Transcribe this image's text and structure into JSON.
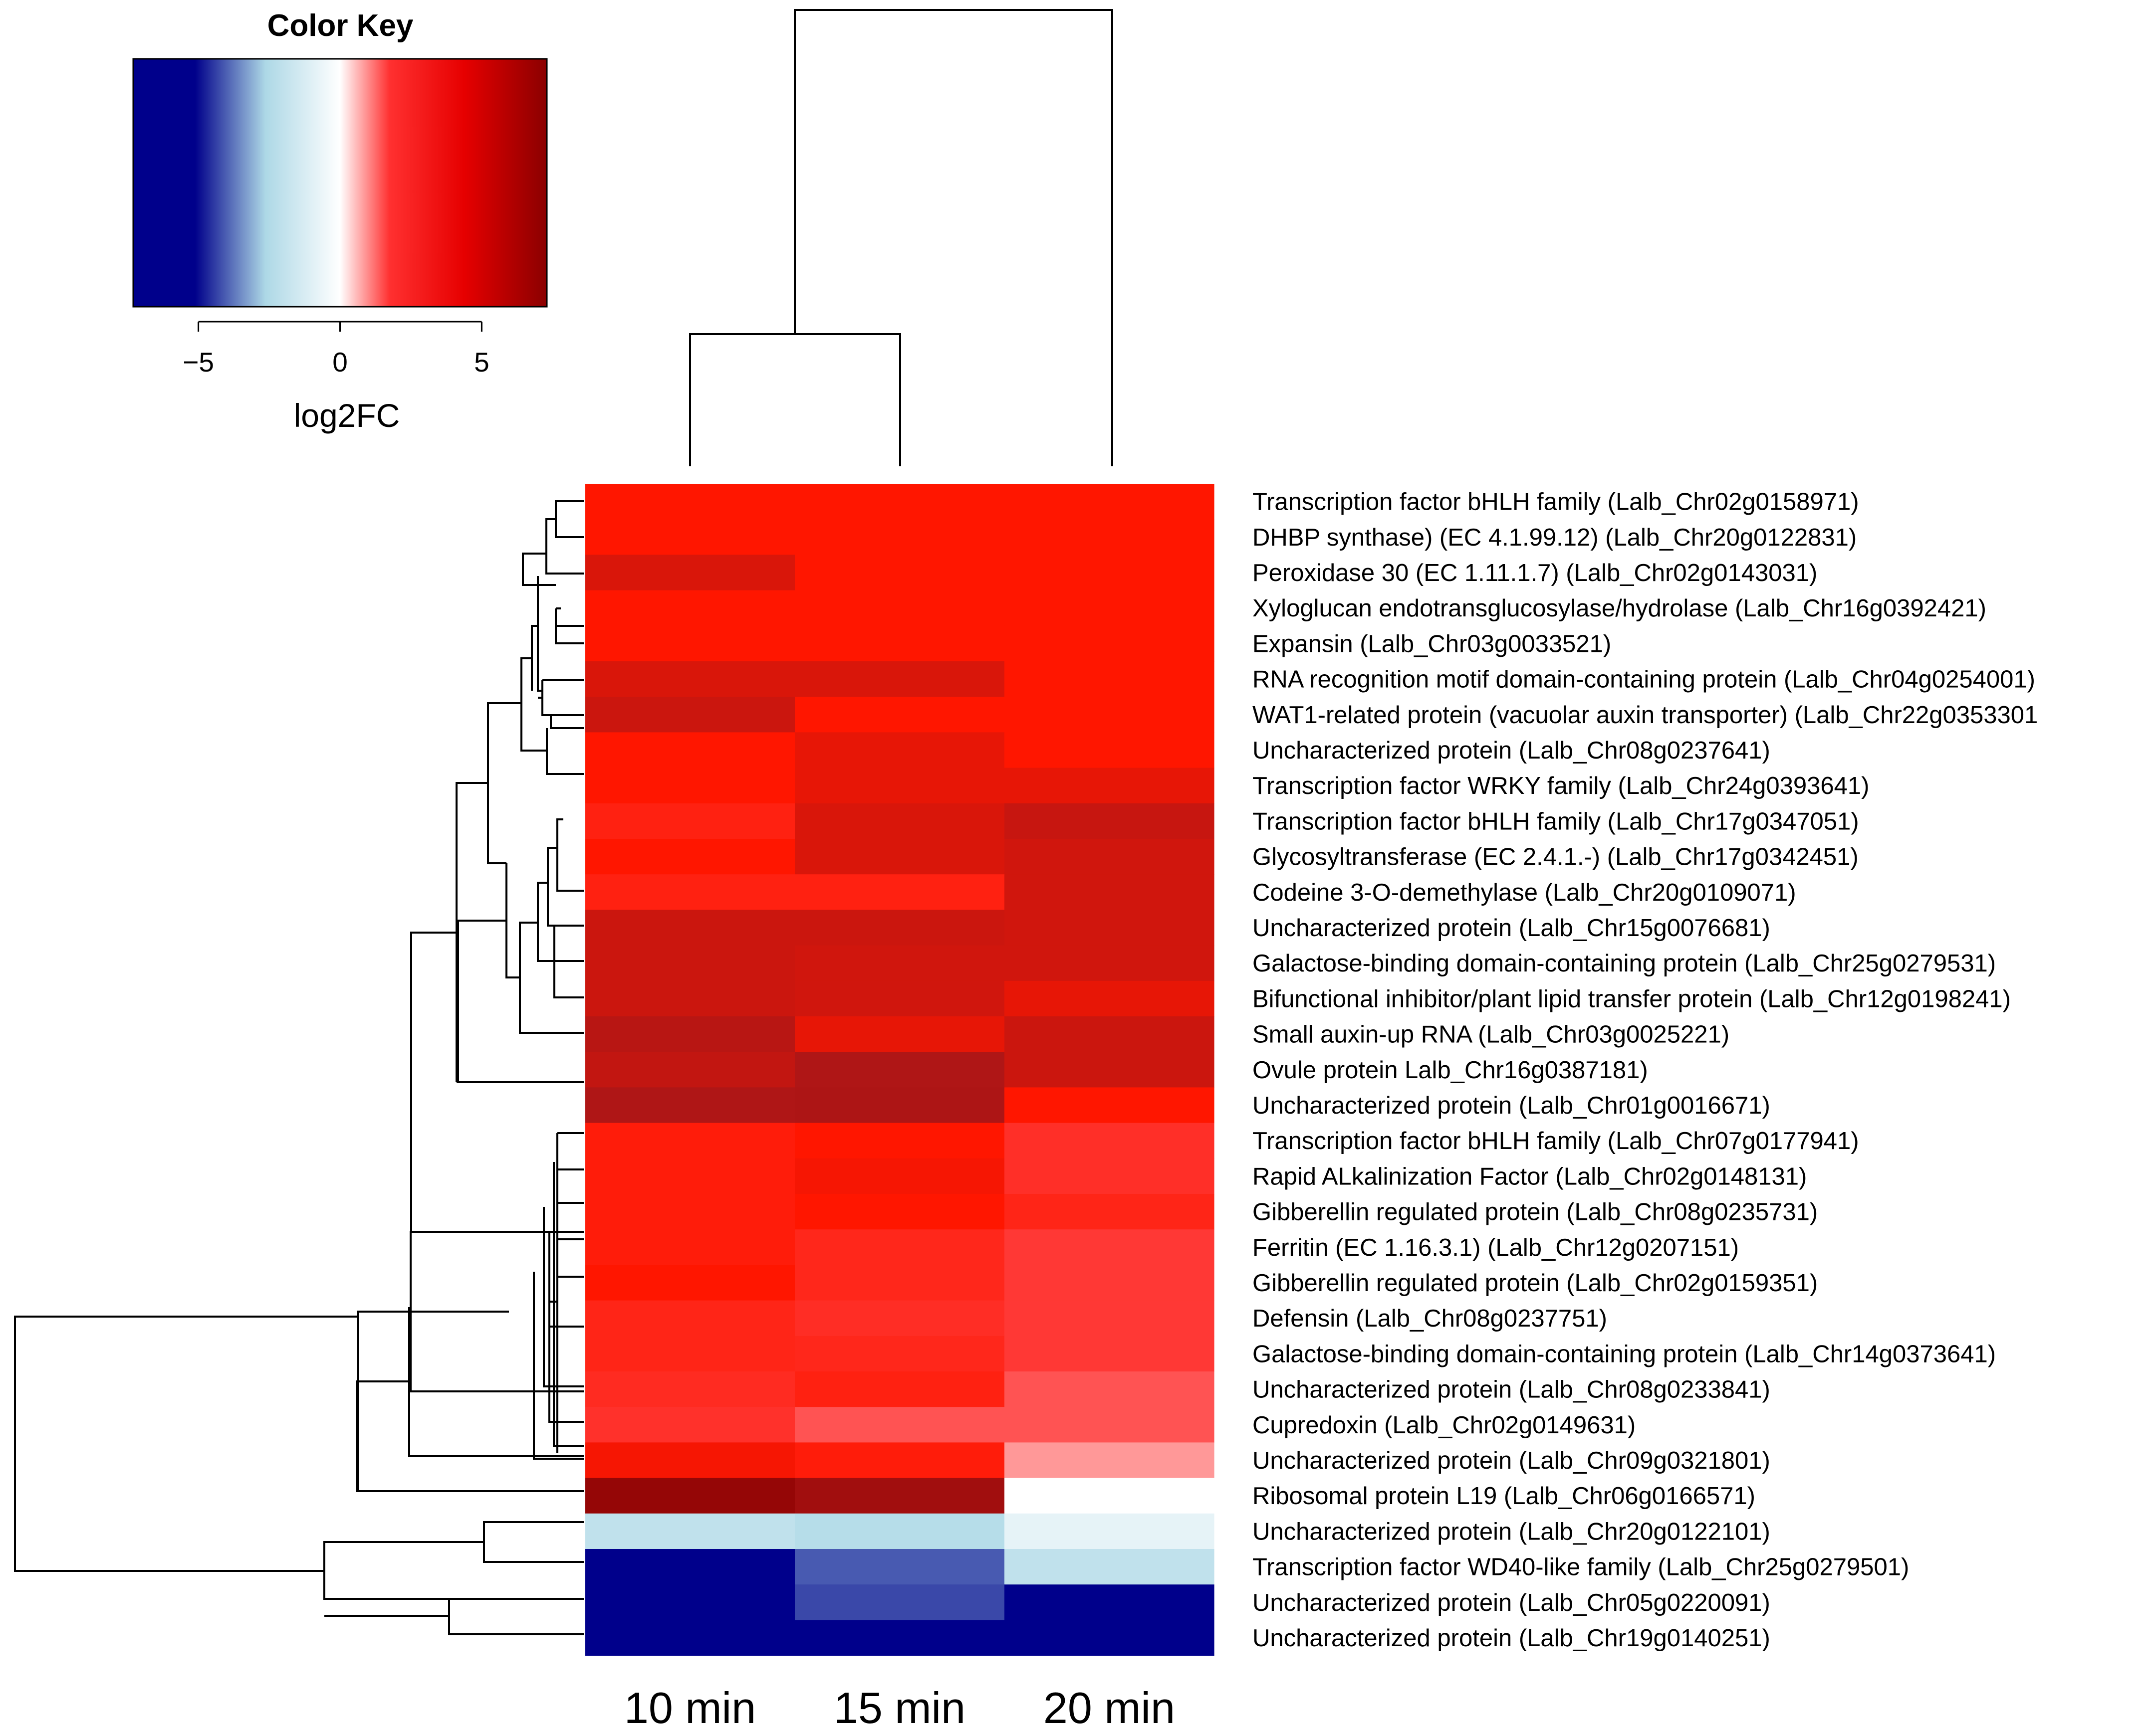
{
  "chart_data": {
    "type": "heatmap",
    "title": "",
    "color_key": {
      "title": "Color Key",
      "xlabel": "log2FC",
      "range": [
        -7.3,
        7.3
      ],
      "ticks": [
        -5,
        0,
        5
      ],
      "tick_labels": [
        "−5",
        "0",
        "5"
      ],
      "colors": {
        "low": "#00008b",
        "mid_low": "#add8e6",
        "mid": "#ffffff",
        "mid_high": "#ff0000",
        "high": "#8b0000"
      }
    },
    "columns": [
      "10 min",
      "15 min",
      "20 min"
    ],
    "rows": [
      "Transcription factor bHLH family (Lalb_Chr02g0158971)",
      "DHBP synthase) (EC 4.1.99.12) (Lalb_Chr20g0122831)",
      "Peroxidase 30 (EC 1.11.1.7) (Lalb_Chr02g0143031)",
      "Xyloglucan endotransglucosylase/hydrolase (Lalb_Chr16g0392421)",
      "Expansin (Lalb_Chr03g0033521)",
      "RNA recognition motif domain-containing protein (Lalb_Chr04g0254001)",
      "WAT1-related protein (vacuolar auxin transporter) (Lalb_Chr22g0353301",
      "Uncharacterized protein (Lalb_Chr08g0237641)",
      "Transcription factor WRKY family (Lalb_Chr24g0393641)",
      "Transcription factor bHLH family (Lalb_Chr17g0347051)",
      "Glycosyltransferase (EC 2.4.1.-) (Lalb_Chr17g0342451)",
      "Codeine 3-O-demethylase (Lalb_Chr20g0109071)",
      "Uncharacterized protein (Lalb_Chr15g0076681)",
      "Galactose-binding domain-containing protein (Lalb_Chr25g0279531)",
      "Bifunctional inhibitor/plant lipid transfer protein (Lalb_Chr12g0198241)",
      "Small auxin-up RNA (Lalb_Chr03g0025221)",
      "Ovule protein Lalb_Chr16g0387181)",
      "Uncharacterized protein (Lalb_Chr01g0016671)",
      "Transcription factor bHLH family (Lalb_Chr07g0177941)",
      "Rapid ALkalinization Factor (Lalb_Chr02g0148131)",
      "Gibberellin regulated protein (Lalb_Chr08g0235731)",
      "Ferritin (EC 1.16.3.1) (Lalb_Chr12g0207151)",
      "Gibberellin regulated protein (Lalb_Chr02g0159351)",
      "Defensin (Lalb_Chr08g0237751)",
      "Galactose-binding domain-containing protein (Lalb_Chr14g0373641)",
      "Uncharacterized protein (Lalb_Chr08g0233841)",
      "Cupredoxin (Lalb_Chr02g0149631)",
      "Uncharacterized protein (Lalb_Chr09g0321801)",
      "Ribosomal protein L19 (Lalb_Chr06g0166571)",
      "Uncharacterized protein (Lalb_Chr20g0122101)",
      "Transcription factor WD40-like family (Lalb_Chr25g0279501)",
      "Uncharacterized protein (Lalb_Chr05g0220091)",
      "Uncharacterized protein (Lalb_Chr19g0140251)"
    ],
    "values": [
      [
        3.5,
        3.5,
        3.5
      ],
      [
        3.5,
        3.5,
        3.5
      ],
      [
        4.3,
        3.5,
        3.5
      ],
      [
        3.5,
        3.5,
        3.5
      ],
      [
        3.5,
        3.5,
        3.5
      ],
      [
        4.3,
        4.3,
        3.5
      ],
      [
        4.6,
        3.5,
        3.5
      ],
      [
        3.5,
        4.0,
        3.5
      ],
      [
        3.5,
        4.0,
        4.0
      ],
      [
        3.0,
        4.3,
        4.7
      ],
      [
        3.5,
        4.3,
        4.5
      ],
      [
        3.0,
        3.0,
        4.5
      ],
      [
        4.6,
        4.6,
        4.5
      ],
      [
        4.6,
        4.5,
        4.5
      ],
      [
        4.6,
        4.5,
        4.0
      ],
      [
        5.0,
        4.0,
        4.6
      ],
      [
        4.8,
        5.2,
        4.6
      ],
      [
        5.2,
        5.3,
        3.5
      ],
      [
        3.2,
        3.5,
        2.3
      ],
      [
        3.2,
        3.7,
        2.3
      ],
      [
        3.2,
        3.5,
        2.8
      ],
      [
        3.2,
        2.7,
        1.9
      ],
      [
        3.5,
        2.7,
        1.9
      ],
      [
        2.8,
        2.4,
        1.9
      ],
      [
        2.8,
        2.7,
        1.9
      ],
      [
        2.5,
        3.0,
        1.5
      ],
      [
        2.2,
        1.5,
        1.5
      ],
      [
        3.7,
        3.2,
        0.9
      ],
      [
        6.7,
        6.0,
        0.0
      ],
      [
        -2.0,
        -2.3,
        -0.8
      ],
      [
        -6.3,
        -4.0,
        -2.0
      ],
      [
        -5.6,
        -4.2,
        -6.6
      ],
      [
        -6.6,
        -6.6,
        -6.6
      ]
    ]
  }
}
